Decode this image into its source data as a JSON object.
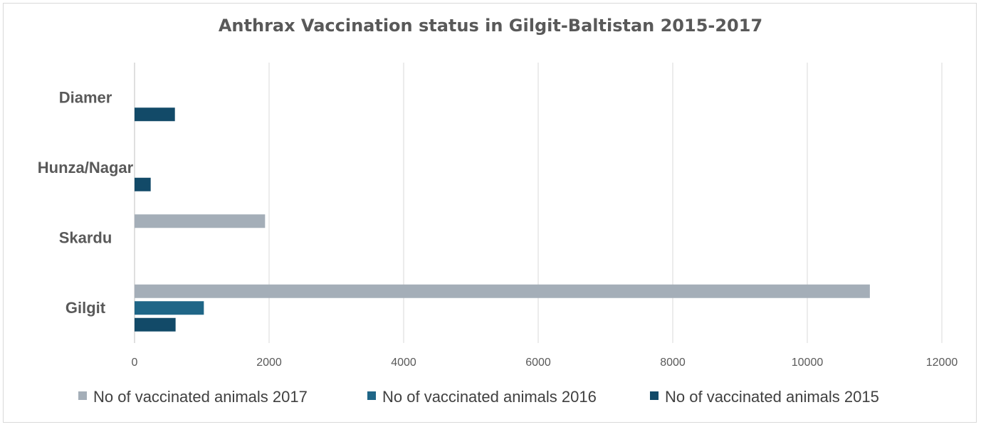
{
  "chart_data": {
    "type": "bar",
    "orientation": "horizontal",
    "title": "Anthrax Vaccination status in Gilgit-Baltistan 2015-2017",
    "categories": [
      "Gilgit",
      "Skardu",
      "Hunza/Nagar",
      "Diamer"
    ],
    "series": [
      {
        "name": "No of vaccinated animals 2017",
        "color": "#a4aeb8",
        "values": [
          10930,
          1940,
          0,
          0
        ]
      },
      {
        "name": "No of vaccinated animals 2016",
        "color": "#1f6687",
        "values": [
          1030,
          0,
          0,
          0
        ]
      },
      {
        "name": "No of vaccinated animals 2015",
        "color": "#124a68",
        "values": [
          610,
          0,
          240,
          600
        ]
      }
    ],
    "x_ticks": [
      "0",
      "2000",
      "4000",
      "6000",
      "8000",
      "10000",
      "12000"
    ],
    "xlim": [
      0,
      12000
    ],
    "grid": true,
    "legend": "bottom"
  }
}
